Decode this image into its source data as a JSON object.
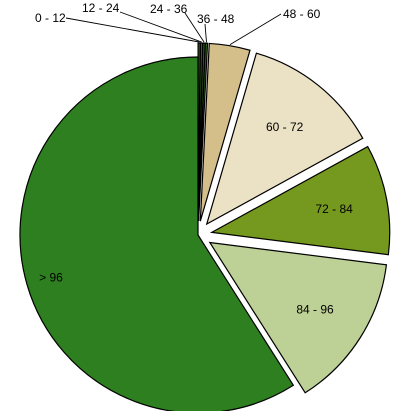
{
  "chart_data": {
    "type": "pie",
    "exploded": true,
    "start_angle_deg": 0,
    "direction": "clockwise",
    "slices": [
      {
        "label": "0 - 12",
        "value": 0.2,
        "color": "#3a6b1f"
      },
      {
        "label": "12 - 24",
        "value": 0.2,
        "color": "#3a6b1f"
      },
      {
        "label": "24 - 36",
        "value": 0.2,
        "color": "#3a6b1f"
      },
      {
        "label": "36 - 48",
        "value": 0.2,
        "color": "#3a6b1f"
      },
      {
        "label": "48 - 60",
        "value": 3.7,
        "color": "#d4bf8a"
      },
      {
        "label": "60 - 72",
        "value": 12.5,
        "color": "#ebe1c4"
      },
      {
        "label": "72 - 84",
        "value": 10.0,
        "color": "#75981f"
      },
      {
        "label": "84 - 96",
        "value": 14.0,
        "color": "#bdd095"
      },
      {
        "label": "> 96",
        "value": 59.0,
        "color": "#2e7f20"
      }
    ]
  }
}
